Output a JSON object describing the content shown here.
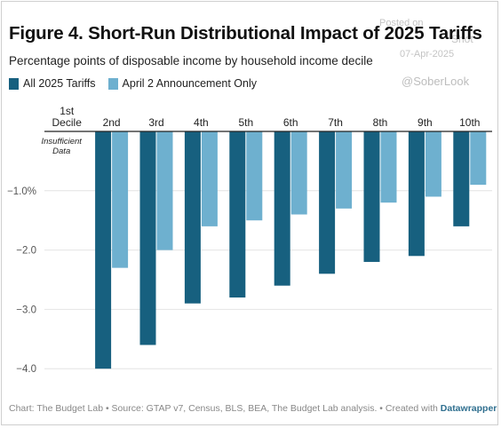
{
  "title": "Figure 4. Short-Run Distributional Impact of 2025 Tariffs",
  "subtitle": "Percentage points of disposable income by household income decile",
  "watermark": {
    "line1": "Posted on",
    "line2": "Shot",
    "line3": "07-Apr-2025",
    "handle": "@SoberLook"
  },
  "footer": {
    "text": "Chart: The Budget Lab • Source: GTAP v7, Census, BLS, BEA, The Budget Lab analysis. • Created with",
    "brand": "Datawrapper"
  },
  "colors": {
    "all_tariffs": "#17607f",
    "april2": "#6eb0cf",
    "grid": "#e4e4e4",
    "axis": "#222222"
  },
  "chart_data": {
    "type": "bar",
    "title": "Figure 4. Short-Run Distributional Impact of 2025 Tariffs",
    "subtitle": "Percentage points of disposable income by household income decile",
    "categories": [
      "1st\nDecile",
      "2nd",
      "3rd",
      "4th",
      "5th",
      "6th",
      "7th",
      "8th",
      "9th",
      "10th"
    ],
    "series": [
      {
        "name": "All 2025 Tariffs",
        "color": "#17607f",
        "values": [
          null,
          -4.0,
          -3.6,
          -2.9,
          -2.8,
          -2.6,
          -2.4,
          -2.2,
          -2.1,
          -1.6
        ]
      },
      {
        "name": "April 2 Announcement Only",
        "color": "#6eb0cf",
        "values": [
          null,
          -2.3,
          -2.0,
          -1.6,
          -1.5,
          -1.4,
          -1.3,
          -1.2,
          -1.1,
          -0.9
        ]
      }
    ],
    "ylim": [
      -4.0,
      0
    ],
    "yticks": [
      -1.0,
      -2.0,
      -3.0,
      -4.0
    ],
    "ytick_labels": [
      "−1.0%",
      "−2.0",
      "−3.0",
      "−4.0"
    ],
    "annotation": "Insufficient\nData",
    "xlabel": "",
    "ylabel": "",
    "grid": true,
    "legend": "top-left"
  }
}
